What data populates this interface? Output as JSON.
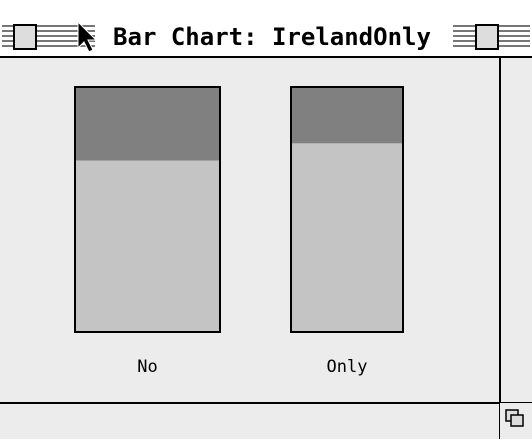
{
  "window": {
    "title": "Bar Chart: IrelandOnly"
  },
  "chart_data": {
    "type": "bar",
    "stacked": true,
    "categories": [
      "No",
      "Only"
    ],
    "series": [
      {
        "color": "#c4c4c4",
        "values": [
          70,
          77
        ]
      },
      {
        "color": "#808080",
        "values": [
          30,
          23
        ]
      }
    ],
    "ylim": [
      0,
      100
    ]
  }
}
